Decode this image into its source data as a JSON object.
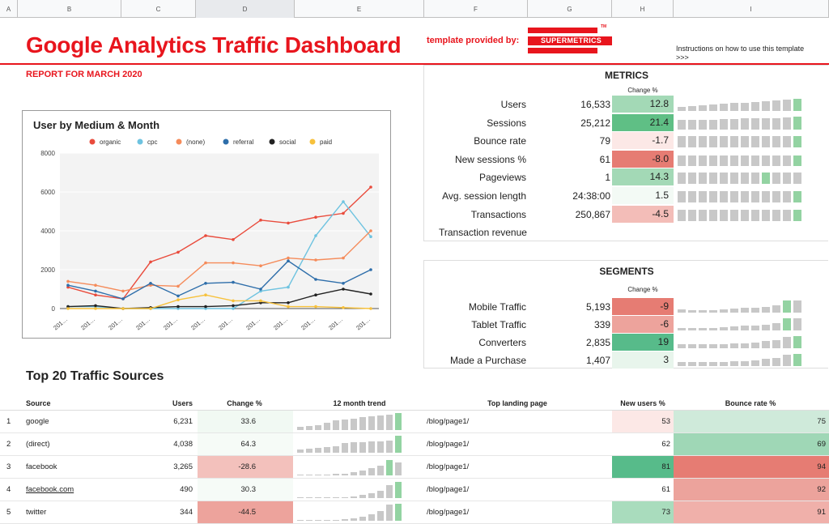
{
  "columns": [
    "A",
    "B",
    "C",
    "D",
    "E",
    "F",
    "G",
    "H",
    "I"
  ],
  "title": "Google Analytics Traffic Dashboard",
  "subtitle": "REPORT FOR MARCH 2020",
  "template_provided_by": "template provided by:",
  "logo_text": "SUPERMETRICS",
  "logo_tm": "TM",
  "instructions": "Instructions on how to use this template",
  "instructions_arrow": ">>>",
  "colors": {
    "accent": "#e8151d",
    "green": "#57bb8a",
    "red": "#e67c73",
    "spark": "#c8c8c8",
    "spark_hi": "#93d3a2"
  },
  "metrics": {
    "heading": "METRICS",
    "change_header": "Change %",
    "rows": [
      {
        "label": "Users",
        "value": "16,533",
        "change": "12.8",
        "bg": "#a3d9b6",
        "spark": [
          0.3,
          0.35,
          0.4,
          0.45,
          0.5,
          0.6,
          0.6,
          0.65,
          0.7,
          0.75,
          0.85,
          0.9
        ],
        "hi": [
          11
        ]
      },
      {
        "label": "Sessions",
        "value": "25,212",
        "change": "21.4",
        "bg": "#5fbf85",
        "spark": [
          0.7,
          0.7,
          0.7,
          0.7,
          0.75,
          0.75,
          0.8,
          0.8,
          0.85,
          0.85,
          0.9,
          0.95
        ],
        "hi": [
          11
        ]
      },
      {
        "label": "Bounce rate",
        "value": "79",
        "change": "-1.7",
        "bg": "#fce8e6",
        "spark": [
          0.8,
          0.8,
          0.8,
          0.8,
          0.8,
          0.8,
          0.8,
          0.8,
          0.8,
          0.8,
          0.8,
          0.8
        ],
        "hi": [
          11
        ]
      },
      {
        "label": "New sessions %",
        "value": "61",
        "change": "-8.0",
        "bg": "#e67c73",
        "spark": [
          0.75,
          0.75,
          0.75,
          0.75,
          0.75,
          0.75,
          0.75,
          0.75,
          0.75,
          0.75,
          0.75,
          0.75
        ],
        "hi": [
          11
        ]
      },
      {
        "label": "Pageviews",
        "value": "1",
        "change": "14.3",
        "bg": "#a3d9b6",
        "spark": [
          0.8,
          0.8,
          0.8,
          0.8,
          0.8,
          0.8,
          0.8,
          0.8,
          0.8,
          0.8,
          0.8,
          0.8
        ],
        "hi": [
          8
        ]
      },
      {
        "label": "Avg. session length",
        "value": "24:38:00",
        "change": "1.5",
        "bg": "#f3faf5",
        "spark": [
          0.8,
          0.8,
          0.8,
          0.8,
          0.8,
          0.8,
          0.8,
          0.8,
          0.8,
          0.8,
          0.8,
          0.8
        ],
        "hi": [
          11
        ]
      },
      {
        "label": "Transactions",
        "value": "250,867",
        "change": "-4.5",
        "bg": "#f3bdb8",
        "spark": [
          0.8,
          0.8,
          0.8,
          0.8,
          0.8,
          0.8,
          0.8,
          0.8,
          0.8,
          0.8,
          0.8,
          0.8
        ],
        "hi": [
          11
        ]
      },
      {
        "label": "Transaction revenue",
        "value": "",
        "change": "",
        "bg": "transparent",
        "spark": [],
        "hi": []
      }
    ]
  },
  "segments": {
    "heading": "SEGMENTS",
    "change_header": "Change %",
    "rows": [
      {
        "label": "Mobile Traffic",
        "value": "5,193",
        "change": "-9",
        "bg": "#e67c73",
        "spark": [
          0.25,
          0.2,
          0.2,
          0.2,
          0.25,
          0.3,
          0.35,
          0.4,
          0.45,
          0.55,
          0.95,
          0.95
        ],
        "hi": [
          10
        ]
      },
      {
        "label": "Tablet Traffic",
        "value": "339",
        "change": "-6",
        "bg": "#eda39c",
        "spark": [
          0.2,
          0.2,
          0.2,
          0.2,
          0.25,
          0.3,
          0.35,
          0.35,
          0.45,
          0.55,
          0.95,
          0.95
        ],
        "hi": [
          10
        ]
      },
      {
        "label": "Converters",
        "value": "2,835",
        "change": "19",
        "bg": "#57bb8a",
        "spark": [
          0.3,
          0.3,
          0.3,
          0.3,
          0.3,
          0.35,
          0.4,
          0.45,
          0.55,
          0.6,
          0.9,
          0.95
        ],
        "hi": [
          11
        ]
      },
      {
        "label": "Made a Purchase",
        "value": "1,407",
        "change": "3",
        "bg": "#e8f5ec",
        "spark": [
          0.3,
          0.3,
          0.3,
          0.3,
          0.3,
          0.35,
          0.4,
          0.45,
          0.55,
          0.6,
          0.9,
          0.95
        ],
        "hi": [
          11
        ]
      }
    ]
  },
  "chart_data": {
    "type": "line",
    "title": "User by Medium & Month",
    "categories": [
      "201…",
      "201…",
      "201…",
      "201…",
      "201…",
      "201…",
      "201…",
      "201…",
      "201…",
      "201…",
      "201…",
      "201…"
    ],
    "ylim": [
      0,
      8000
    ],
    "yticks": [
      "0",
      "2000",
      "4000",
      "6000",
      "8000"
    ],
    "grid": true,
    "legend_position": "top",
    "series": [
      {
        "name": "organic",
        "color": "#e94b3c",
        "values": [
          1100,
          700,
          500,
          2400,
          2900,
          3750,
          3550,
          4550,
          4400,
          4700,
          4900,
          6250
        ]
      },
      {
        "name": "cpc",
        "color": "#6ec3e0",
        "values": [
          100,
          100,
          0,
          0,
          0,
          0,
          0,
          900,
          1100,
          3750,
          5500,
          3700
        ]
      },
      {
        "name": "(none)",
        "color": "#f58b5a",
        "values": [
          1400,
          1200,
          900,
          1200,
          1150,
          2350,
          2350,
          2200,
          2600,
          2500,
          2600,
          4000
        ]
      },
      {
        "name": "referral",
        "color": "#2e6eaa",
        "values": [
          1200,
          900,
          500,
          1300,
          650,
          1300,
          1350,
          1000,
          2450,
          1500,
          1300,
          2000
        ]
      },
      {
        "name": "social",
        "color": "#222222",
        "values": [
          100,
          150,
          0,
          50,
          100,
          100,
          150,
          300,
          300,
          700,
          1000,
          750
        ]
      },
      {
        "name": "paid",
        "color": "#f7c13b",
        "values": [
          0,
          0,
          0,
          0,
          450,
          700,
          400,
          400,
          100,
          100,
          50,
          0
        ]
      }
    ]
  },
  "sources": {
    "heading": "Top 20 Traffic Sources",
    "headers": {
      "source": "Source",
      "users": "Users",
      "change": "Change %",
      "trend": "12 month trend",
      "landing": "Top landing page",
      "new_users": "New users %",
      "bounce": "Bounce rate %"
    },
    "rows": [
      {
        "n": "1",
        "source": "google",
        "users": "6,231",
        "change": "33.6",
        "change_bg": "#f1f9f3",
        "landing": "/blog/page1/",
        "new_users": "53",
        "new_bg": "#fce8e6",
        "bounce": "75",
        "bounce_bg": "#cfeada",
        "spark": [
          0.2,
          0.25,
          0.3,
          0.45,
          0.55,
          0.6,
          0.65,
          0.75,
          0.8,
          0.85,
          0.9,
          1
        ],
        "hi": [
          11
        ],
        "link": false
      },
      {
        "n": "2",
        "source": "(direct)",
        "users": "4,038",
        "change": "64.3",
        "change_bg": "#f6fbf7",
        "landing": "/blog/page1/",
        "new_users": "62",
        "new_bg": "transparent",
        "bounce": "69",
        "bounce_bg": "#9fd7b6",
        "spark": [
          0.2,
          0.25,
          0.3,
          0.35,
          0.4,
          0.55,
          0.6,
          0.6,
          0.65,
          0.65,
          0.7,
          1
        ],
        "hi": [
          11
        ],
        "link": false
      },
      {
        "n": "3",
        "source": "facebook",
        "users": "3,265",
        "change": "-28.6",
        "change_bg": "#f3c1bc",
        "landing": "/blog/page1/",
        "new_users": "81",
        "new_bg": "#57bb8a",
        "bounce": "94",
        "bounce_bg": "#e67c73",
        "spark": [
          0,
          0,
          0,
          0,
          0.1,
          0.1,
          0.2,
          0.3,
          0.45,
          0.55,
          0.9,
          0.75
        ],
        "hi": [
          10
        ],
        "link": false
      },
      {
        "n": "4",
        "source": "facebook.com",
        "users": "490",
        "change": "30.3",
        "change_bg": "#f6fbf7",
        "landing": "/blog/page1/",
        "new_users": "61",
        "new_bg": "transparent",
        "bounce": "92",
        "bounce_bg": "#eca39c",
        "spark": [
          0,
          0,
          0,
          0,
          0,
          0,
          0.1,
          0.2,
          0.3,
          0.45,
          0.75,
          0.95
        ],
        "hi": [
          11
        ],
        "link": true
      },
      {
        "n": "5",
        "source": "twitter",
        "users": "344",
        "change": "-44.5",
        "change_bg": "#eda39c",
        "landing": "/blog/page1/",
        "new_users": "73",
        "new_bg": "#a9dcbd",
        "bounce": "91",
        "bounce_bg": "#f0b0aa",
        "spark": [
          0,
          0,
          0,
          0,
          0.05,
          0.1,
          0.15,
          0.25,
          0.4,
          0.55,
          0.95,
          1
        ],
        "hi": [
          11
        ],
        "link": false
      }
    ]
  }
}
